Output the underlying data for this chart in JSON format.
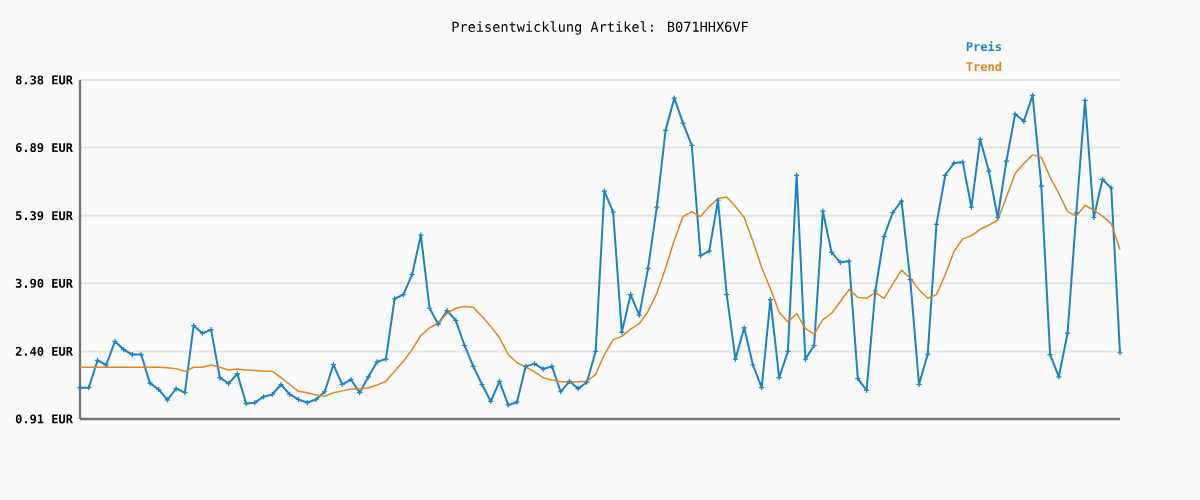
{
  "chart_data": {
    "type": "line",
    "title": "Preisentwicklung Artikel: B071HHX6VF",
    "categories": [
      null,
      null,
      null,
      null,
      null,
      null,
      null,
      null,
      null,
      null,
      null,
      null,
      null,
      null,
      null,
      null,
      null,
      null,
      null,
      null,
      null,
      null,
      null,
      null,
      null,
      null,
      null,
      null,
      null,
      null,
      null,
      null,
      null,
      null,
      null,
      null,
      null,
      null,
      null,
      null,
      null,
      null,
      null,
      null,
      null,
      null,
      null,
      null,
      null,
      null,
      null,
      null,
      null,
      null,
      null,
      null,
      null,
      null,
      null,
      null,
      null,
      null,
      null,
      null,
      null,
      null,
      null,
      null,
      null,
      null,
      null,
      null,
      null,
      null,
      null,
      null,
      null,
      null,
      null,
      null,
      null,
      null,
      null,
      null,
      null,
      null,
      null,
      null,
      null,
      null,
      null,
      null,
      null,
      null,
      null,
      null,
      null,
      null,
      null,
      null,
      null,
      null,
      null,
      null,
      null,
      null,
      null,
      null,
      null,
      null,
      null,
      null,
      null,
      null,
      null,
      null,
      null,
      null,
      null,
      null
    ],
    "series": [
      {
        "name": "Preis",
        "color": "#1a82c8",
        "marker": "cross",
        "values": [
          1.6,
          1.6,
          2.2,
          2.1,
          2.62,
          2.44,
          2.33,
          2.33,
          1.7,
          1.56,
          1.33,
          1.58,
          1.49,
          2.97,
          2.8,
          2.88,
          1.82,
          1.69,
          1.91,
          1.25,
          1.27,
          1.4,
          1.45,
          1.67,
          1.45,
          1.34,
          1.27,
          1.34,
          1.51,
          2.11,
          1.67,
          1.78,
          1.49,
          1.84,
          2.17,
          2.23,
          3.56,
          3.65,
          4.09,
          4.96,
          3.35,
          3.0,
          3.3,
          3.08,
          2.53,
          2.07,
          1.67,
          1.3,
          1.74,
          1.22,
          1.28,
          2.07,
          2.13,
          2.01,
          2.07,
          1.51,
          1.74,
          1.58,
          1.72,
          2.4,
          5.93,
          5.47,
          2.82,
          3.65,
          3.2,
          4.23,
          5.58,
          7.27,
          7.98,
          7.43,
          6.94,
          4.51,
          4.61,
          5.73,
          3.65,
          2.23,
          2.92,
          2.1,
          1.6,
          3.54,
          1.82,
          2.4,
          6.28,
          2.23,
          2.53,
          5.49,
          4.58,
          4.36,
          4.39,
          1.8,
          1.54,
          3.73,
          4.93,
          5.46,
          5.71,
          3.98,
          1.67,
          2.34,
          5.2,
          6.28,
          6.55,
          6.57,
          5.58,
          7.07,
          6.37,
          5.35,
          6.59,
          7.63,
          7.47,
          8.04,
          6.04,
          2.33,
          1.84,
          2.8,
          5.45,
          7.93,
          5.35,
          6.19,
          6.0,
          2.37
        ]
      },
      {
        "name": "Trend",
        "color": "#e0861a",
        "marker": "none",
        "values": [
          2.05,
          2.05,
          2.05,
          2.05,
          2.05,
          2.05,
          2.05,
          2.05,
          2.05,
          2.05,
          2.04,
          2.02,
          1.96,
          2.05,
          2.05,
          2.1,
          2.05,
          1.99,
          2.01,
          1.99,
          1.98,
          1.96,
          1.96,
          1.82,
          1.67,
          1.52,
          1.49,
          1.44,
          1.41,
          1.49,
          1.53,
          1.57,
          1.57,
          1.6,
          1.66,
          1.74,
          1.96,
          2.18,
          2.44,
          2.75,
          2.92,
          3.02,
          3.24,
          3.35,
          3.39,
          3.37,
          3.17,
          2.95,
          2.7,
          2.33,
          2.15,
          2.06,
          1.95,
          1.82,
          1.77,
          1.73,
          1.72,
          1.73,
          1.74,
          1.89,
          2.33,
          2.66,
          2.73,
          2.89,
          3.01,
          3.28,
          3.68,
          4.23,
          4.85,
          5.37,
          5.48,
          5.37,
          5.59,
          5.77,
          5.8,
          5.59,
          5.35,
          4.82,
          4.25,
          3.78,
          3.26,
          3.05,
          3.23,
          2.9,
          2.78,
          3.1,
          3.24,
          3.5,
          3.76,
          3.59,
          3.57,
          3.7,
          3.57,
          3.88,
          4.19,
          4.01,
          3.76,
          3.57,
          3.65,
          4.09,
          4.6,
          4.88,
          4.95,
          5.09,
          5.18,
          5.29,
          5.8,
          6.32,
          6.54,
          6.73,
          6.68,
          6.24,
          5.88,
          5.48,
          5.38,
          5.62,
          5.51,
          5.38,
          5.22,
          4.64
        ]
      }
    ],
    "ylim": [
      0.91,
      8.38
    ],
    "yticks": [
      {
        "value": 0.91,
        "label": "0.91 EUR"
      },
      {
        "value": 2.4,
        "label": "2.40 EUR"
      },
      {
        "value": 3.9,
        "label": "3.90 EUR"
      },
      {
        "value": 5.39,
        "label": "5.39 EUR"
      },
      {
        "value": 6.89,
        "label": "6.89 EUR"
      },
      {
        "value": 8.38,
        "label": "8.38 EUR"
      }
    ],
    "grid": "y",
    "legend": "top right",
    "tick_labels": "y"
  }
}
